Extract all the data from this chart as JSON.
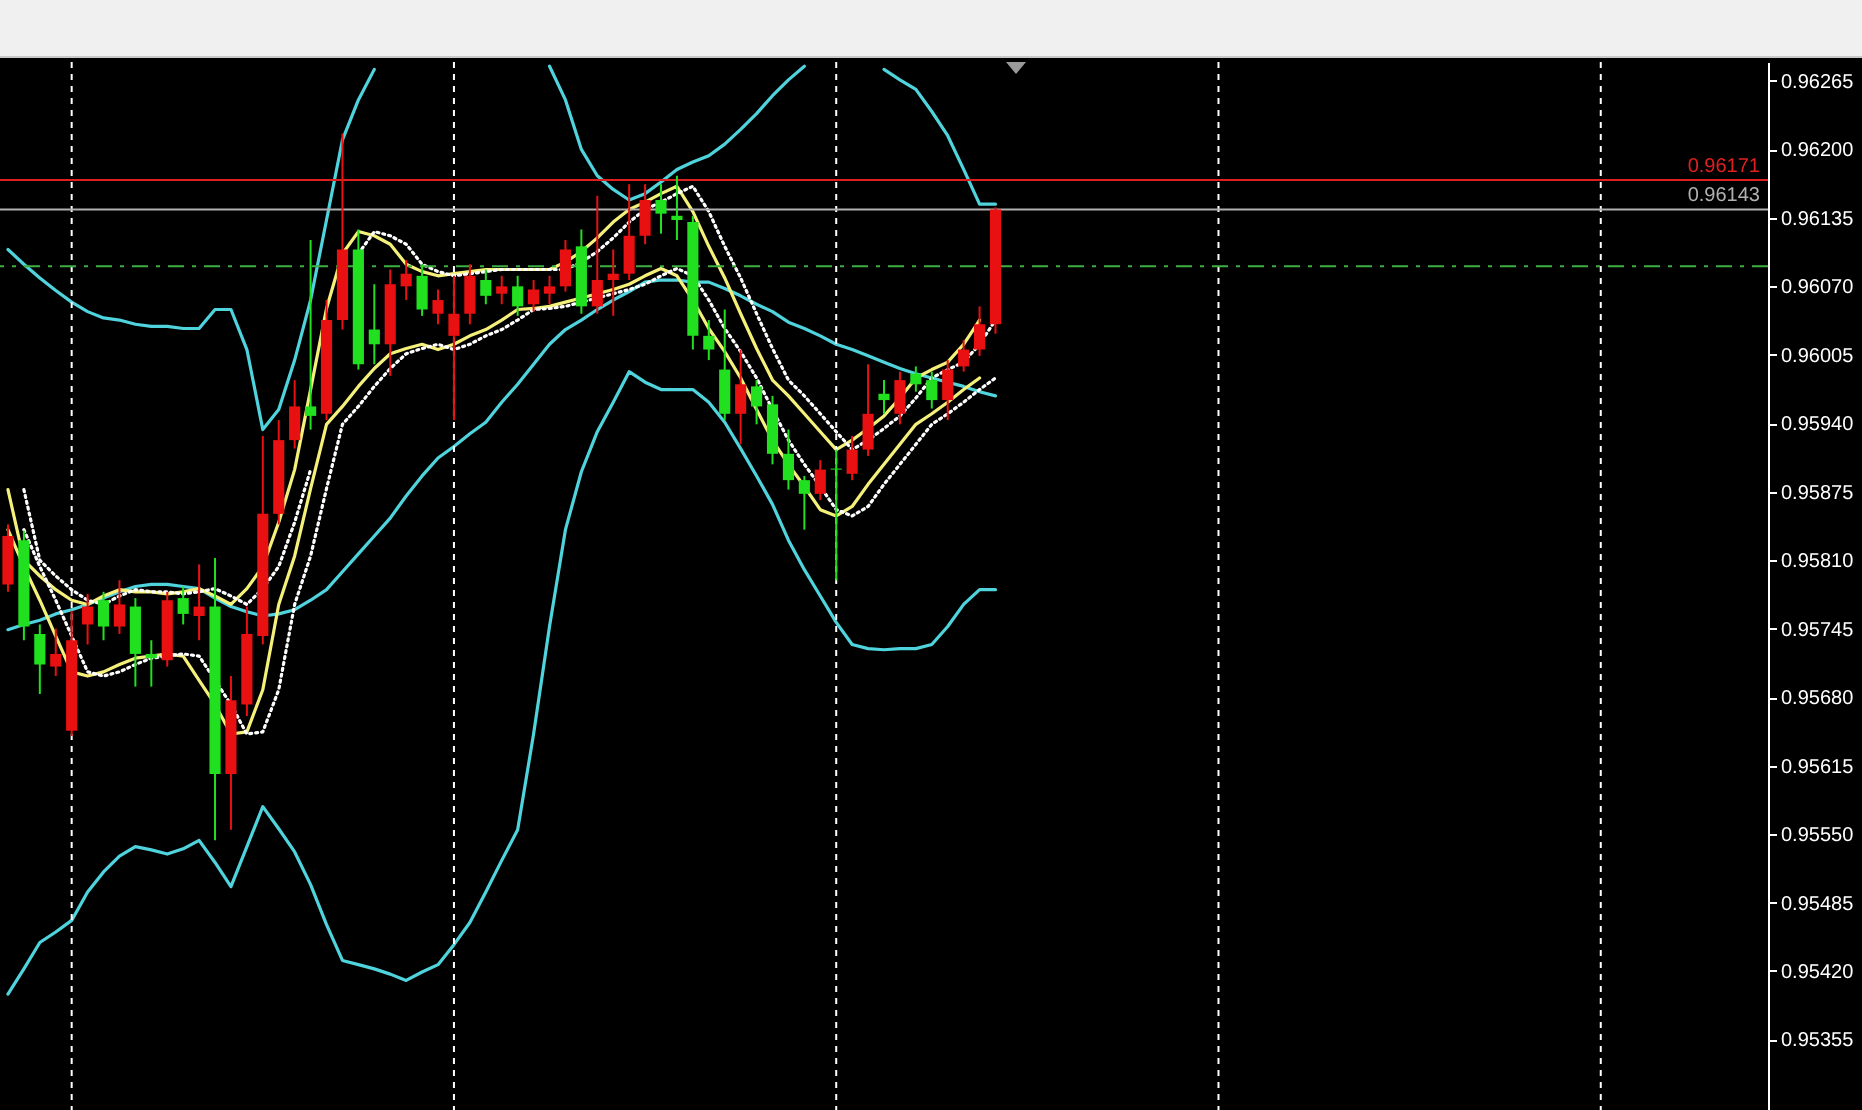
{
  "chart_data": {
    "type": "candlestick",
    "categories": [
      null,
      null,
      null,
      null,
      null,
      null,
      null,
      null,
      null,
      null,
      null,
      null,
      null,
      null,
      null,
      null,
      null,
      null,
      null,
      null,
      null,
      null,
      null,
      null,
      null,
      null,
      null,
      null,
      null,
      null,
      null,
      null,
      null,
      null,
      null,
      null,
      null,
      null,
      null,
      null,
      null,
      null,
      null,
      null,
      null,
      null,
      null,
      null,
      null,
      null,
      null,
      null,
      null,
      null,
      null,
      null,
      null,
      null,
      null,
      null,
      null,
      null,
      null,
      null,
      null,
      null,
      null,
      null,
      null,
      null,
      null,
      null,
      null,
      null,
      null,
      null,
      null,
      null,
      null,
      null,
      null,
      null,
      null,
      null,
      null,
      null,
      null,
      null,
      null,
      null,
      null,
      null,
      null,
      null,
      null,
      null,
      null,
      null,
      null,
      null,
      null,
      null,
      null,
      null,
      null,
      null,
      null,
      null,
      null,
      null,
      null
    ],
    "ohlc": [
      [
        0.95787,
        0.95844,
        0.9578,
        0.95833
      ],
      [
        0.95829,
        0.95838,
        0.95734,
        0.95747
      ],
      [
        0.9574,
        0.95749,
        0.95683,
        0.95711
      ],
      [
        0.95709,
        0.95745,
        0.957,
        0.95721
      ],
      [
        0.95648,
        0.95762,
        0.95643,
        0.95734
      ],
      [
        0.95749,
        0.95778,
        0.9573,
        0.95766
      ],
      [
        0.95772,
        0.9578,
        0.95734,
        0.95747
      ],
      [
        0.95747,
        0.95791,
        0.9574,
        0.95768
      ],
      [
        0.95766,
        0.95774,
        0.9569,
        0.95721
      ],
      [
        0.95721,
        0.95734,
        0.9569,
        0.95717
      ],
      [
        0.95715,
        0.9578,
        0.95709,
        0.95772
      ],
      [
        0.95774,
        0.95785,
        0.95749,
        0.95759
      ],
      [
        0.95757,
        0.95806,
        0.95734,
        0.95766
      ],
      [
        0.95766,
        0.95812,
        0.95544,
        0.95607
      ],
      [
        0.95607,
        0.957,
        0.95554,
        0.95677
      ],
      [
        0.95673,
        0.95766,
        0.95662,
        0.9574
      ],
      [
        0.95738,
        0.95928,
        0.9573,
        0.95854
      ],
      [
        0.95854,
        0.95943,
        0.95844,
        0.95924
      ],
      [
        0.95924,
        0.95981,
        0.95916,
        0.95956
      ],
      [
        0.95956,
        0.96114,
        0.95934,
        0.95947
      ],
      [
        0.95949,
        0.96057,
        0.95943,
        0.96038
      ],
      [
        0.96038,
        0.96215,
        0.96029,
        0.96105
      ],
      [
        0.96105,
        0.96124,
        0.95991,
        0.95996
      ],
      [
        0.96029,
        0.96072,
        0.95996,
        0.96015
      ],
      [
        0.96015,
        0.96086,
        0.95985,
        0.96072
      ],
      [
        0.9607,
        0.96095,
        0.96057,
        0.96082
      ],
      [
        0.9608,
        0.96091,
        0.96042,
        0.96048
      ],
      [
        0.96044,
        0.96067,
        0.96034,
        0.96057
      ],
      [
        0.96023,
        0.9608,
        0.95943,
        0.96044
      ],
      [
        0.96044,
        0.96091,
        0.96034,
        0.9608
      ],
      [
        0.96076,
        0.96086,
        0.96053,
        0.96061
      ],
      [
        0.96063,
        0.9608,
        0.96053,
        0.9607
      ],
      [
        0.9607,
        0.9608,
        0.96042,
        0.96051
      ],
      [
        0.96053,
        0.96076,
        0.96046,
        0.96067
      ],
      [
        0.96063,
        0.9608,
        0.96053,
        0.9607
      ],
      [
        0.9607,
        0.96114,
        0.96065,
        0.96105
      ],
      [
        0.96108,
        0.96124,
        0.96044,
        0.96051
      ],
      [
        0.96051,
        0.96156,
        0.96044,
        0.96076
      ],
      [
        0.96076,
        0.96105,
        0.96042,
        0.96082
      ],
      [
        0.96082,
        0.96167,
        0.96076,
        0.96118
      ],
      [
        0.96118,
        0.96167,
        0.9611,
        0.96152
      ],
      [
        0.96152,
        0.96167,
        0.9612,
        0.96139
      ],
      [
        0.96137,
        0.96175,
        0.96114,
        0.96133
      ],
      [
        0.96131,
        0.96137,
        0.9601,
        0.96023
      ],
      [
        0.96023,
        0.96038,
        0.96,
        0.9601
      ],
      [
        0.95991,
        0.96048,
        0.95943,
        0.95949
      ],
      [
        0.95949,
        0.9601,
        0.9592,
        0.95977
      ],
      [
        0.95975,
        0.95981,
        0.95939,
        0.95956
      ],
      [
        0.95958,
        0.95966,
        0.95901,
        0.95911
      ],
      [
        0.95911,
        0.95934,
        0.95877,
        0.95886
      ],
      [
        0.95886,
        0.9589,
        0.95839,
        0.95873
      ],
      [
        0.95873,
        0.95905,
        0.95867,
        0.95896
      ],
      [
        0.95897,
        0.95915,
        0.95791,
        0.95896
      ],
      [
        0.95892,
        0.95928,
        0.95886,
        0.95915
      ],
      [
        0.95915,
        0.95996,
        0.95909,
        0.95949
      ],
      [
        0.95968,
        0.95981,
        0.95949,
        0.95962
      ],
      [
        0.95949,
        0.95989,
        0.95939,
        0.95981
      ],
      [
        0.95987,
        0.95994,
        0.9597,
        0.95977
      ],
      [
        0.95981,
        0.95989,
        0.95954,
        0.95962
      ],
      [
        0.95962,
        0.96,
        0.95943,
        0.95991
      ],
      [
        0.95994,
        0.96019,
        0.95989,
        0.9601
      ],
      [
        0.9601,
        0.96051,
        0.96004,
        0.96034
      ],
      [
        0.96034,
        0.96145,
        0.96025,
        0.96143
      ],
      null,
      null,
      null,
      null,
      null,
      null,
      null,
      null,
      null,
      null,
      null,
      null,
      null,
      null,
      null,
      null,
      null,
      null,
      null,
      null,
      null,
      null,
      null,
      null,
      null,
      null,
      null,
      null,
      null,
      null,
      null,
      null,
      null,
      null,
      null,
      null,
      null,
      null,
      null,
      null,
      null,
      null,
      null,
      null,
      null,
      null,
      null,
      null
    ],
    "colors": [
      "#e81010",
      "#20e020",
      "#20e020",
      "#e81010",
      "#e81010",
      "#e81010",
      "#20e020",
      "#e81010",
      "#20e020",
      "#20e020",
      "#e81010",
      "#20e020",
      "#e81010",
      "#20e020",
      "#e81010",
      "#e81010",
      "#e81010",
      "#e81010",
      "#e81010",
      "#20e020",
      "#e81010",
      "#e81010",
      "#20e020",
      "#20e020",
      "#e81010",
      "#e81010",
      "#20e020",
      "#e81010",
      "#e81010",
      "#e81010",
      "#20e020",
      "#e81010",
      "#20e020",
      "#e81010",
      "#e81010",
      "#e81010",
      "#20e020",
      "#e81010",
      "#e81010",
      "#e81010",
      "#e81010",
      "#20e020",
      "#20e020",
      "#20e020",
      "#20e020",
      "#20e020",
      "#e81010",
      "#20e020",
      "#20e020",
      "#20e020",
      "#20e020",
      "#e81010",
      "#20e020",
      "#e81010",
      "#e81010",
      "#20e020",
      "#e81010",
      "#20e020",
      "#20e020",
      "#e81010",
      "#e81010",
      "#e81010",
      "#e81010",
      null,
      null,
      null,
      null,
      null,
      null,
      null,
      null,
      null,
      null,
      null,
      null,
      null,
      null,
      null,
      null,
      null,
      null,
      null,
      null,
      null,
      null,
      null,
      null,
      null,
      null,
      null,
      null,
      null,
      null,
      null,
      null,
      null,
      null,
      null,
      null,
      null,
      null,
      null,
      null,
      null,
      null,
      null,
      null,
      null,
      null,
      null,
      null
    ],
    "series": [
      {
        "type": "line",
        "color": "#4fd3dc",
        "values": [
          0.96105,
          0.96091,
          0.96078,
          0.96066,
          0.96055,
          0.96046,
          0.9604,
          0.96038,
          0.96034,
          0.96032,
          0.96032,
          0.9603,
          0.9603,
          0.96048,
          0.96048,
          0.9601,
          0.95934,
          0.95953,
          0.96,
          0.96057,
          0.96133,
          0.96209,
          0.96247,
          0.96276,
          null,
          null,
          null,
          null,
          null,
          null,
          null,
          null,
          null,
          null,
          0.96279,
          0.96247,
          0.962,
          0.96175,
          0.96162,
          0.96152,
          0.96158,
          0.96169,
          0.96181,
          0.96188,
          0.96194,
          0.96205,
          0.96219,
          0.96234,
          0.96251,
          0.96266,
          0.96279,
          null,
          null,
          null,
          null,
          0.96276,
          0.96266,
          0.96257,
          0.96236,
          0.96213,
          0.96181,
          0.96148,
          0.96148,
          null,
          null,
          null,
          null,
          null,
          null,
          null,
          null,
          null,
          null,
          null,
          null,
          null,
          null,
          null,
          null,
          null,
          null,
          null,
          null,
          null,
          null,
          null,
          null,
          null,
          null,
          null,
          null,
          null,
          null,
          null,
          null,
          null,
          null,
          null,
          null,
          null,
          null,
          null,
          null,
          null,
          null,
          null,
          null,
          null,
          null,
          null,
          null
        ]
      },
      {
        "type": "line",
        "color": "#4fd3dc",
        "values": [
          0.95744,
          0.95749,
          0.95753,
          0.95759,
          0.95763,
          0.95768,
          0.95774,
          0.9578,
          0.95785,
          0.95787,
          0.95787,
          0.95785,
          0.95783,
          0.95774,
          0.95766,
          0.95761,
          0.95757,
          0.95759,
          0.95763,
          0.95772,
          0.95782,
          0.95799,
          0.95816,
          0.95833,
          0.9585,
          0.95871,
          0.9589,
          0.95907,
          0.95918,
          0.9593,
          0.95941,
          0.9596,
          0.95977,
          0.95996,
          0.96015,
          0.96029,
          0.96038,
          0.96048,
          0.96057,
          0.96065,
          0.96074,
          0.96076,
          0.96076,
          0.96074,
          0.96074,
          0.96068,
          0.96061,
          0.96053,
          0.96046,
          0.96036,
          0.9603,
          0.96023,
          0.96015,
          0.9601,
          0.96004,
          0.95998,
          0.95992,
          0.95987,
          0.95983,
          0.95979,
          0.95975,
          0.9597,
          0.95966,
          null,
          null,
          null,
          null,
          null,
          null,
          null,
          null,
          null,
          null,
          null,
          null,
          null,
          null,
          null,
          null,
          null,
          null,
          null,
          null,
          null,
          null,
          null,
          null,
          null,
          null,
          null,
          null,
          null,
          null,
          null,
          null,
          null,
          null,
          null,
          null,
          null,
          null,
          null,
          null,
          null,
          null,
          null,
          null,
          null,
          null,
          null,
          null
        ]
      },
      {
        "type": "line",
        "color": "#4fd3dc",
        "values": [
          0.95398,
          0.95422,
          0.95447,
          0.95457,
          0.95468,
          0.95495,
          0.95514,
          0.95529,
          0.95538,
          0.95535,
          0.95531,
          0.95536,
          0.95544,
          0.95523,
          0.955,
          0.95538,
          0.95576,
          0.95555,
          0.95533,
          0.95502,
          0.95464,
          0.9543,
          0.95426,
          0.95422,
          0.95417,
          0.95411,
          0.95419,
          0.95426,
          0.95445,
          0.95466,
          0.95495,
          0.95525,
          0.95554,
          0.95645,
          0.95747,
          0.95839,
          0.95894,
          0.95932,
          0.9596,
          0.95989,
          0.95979,
          0.95972,
          0.95972,
          0.95972,
          0.9596,
          0.95941,
          0.95916,
          0.9589,
          0.95863,
          0.95829,
          0.95801,
          0.95776,
          0.95751,
          0.9573,
          0.95726,
          0.95725,
          0.95726,
          0.95726,
          0.9573,
          0.95747,
          0.95768,
          0.95782,
          0.95782,
          null,
          null,
          null,
          null,
          null,
          null,
          null,
          null,
          null,
          null,
          null,
          null,
          null,
          null,
          null,
          null,
          null,
          null,
          null,
          null,
          null,
          null,
          null,
          null,
          null,
          null,
          null,
          null,
          null,
          null,
          null,
          null,
          null,
          null,
          null,
          null,
          null,
          null,
          null,
          null,
          null,
          null,
          null,
          null,
          null,
          null,
          null,
          null
        ]
      },
      {
        "type": "line",
        "color": "#f4f07a",
        "values": [
          0.95877,
          0.9581,
          0.95795,
          0.95782,
          0.95772,
          0.95768,
          0.95776,
          0.95782,
          0.9578,
          0.9578,
          0.95778,
          0.9578,
          0.95783,
          0.95776,
          0.95768,
          0.95783,
          0.95804,
          0.95846,
          0.95896,
          0.95972,
          0.96049,
          0.96101,
          0.96122,
          0.96118,
          0.9611,
          0.96091,
          0.96084,
          0.9608,
          0.96082,
          0.96084,
          0.96086,
          0.96086,
          0.96086,
          0.96086,
          0.96086,
          0.96093,
          0.96103,
          0.96116,
          0.96131,
          0.96143,
          0.9615,
          0.96158,
          0.96165,
          0.96141,
          0.96108,
          0.96078,
          0.96044,
          0.96011,
          0.95981,
          0.95966,
          0.95949,
          0.95932,
          0.95915,
          0.95924,
          0.95935,
          0.95947,
          0.95964,
          0.95983,
          0.95991,
          0.95998,
          0.96015,
          0.96038,
          null,
          null,
          null,
          null,
          null,
          null,
          null,
          null,
          null,
          null,
          null,
          null,
          null,
          null,
          null,
          null,
          null,
          null,
          null,
          null,
          null,
          null,
          null,
          null,
          null,
          null,
          null,
          null,
          null,
          null,
          null,
          null,
          null,
          null,
          null,
          null,
          null,
          null,
          null,
          null,
          null,
          null,
          null,
          null,
          null,
          null,
          null,
          null,
          null
        ]
      },
      {
        "type": "line",
        "color": "#f4f07a",
        "values": [
          0.95839,
          0.95804,
          0.95772,
          0.95738,
          0.95704,
          0.957,
          0.95704,
          0.95711,
          0.95717,
          0.95719,
          0.95721,
          0.95719,
          0.95696,
          0.95673,
          0.95645,
          0.95647,
          0.95687,
          0.95768,
          0.95814,
          0.95878,
          0.95939,
          0.95956,
          0.95975,
          0.95992,
          0.96006,
          0.96011,
          0.96015,
          0.9601,
          0.96015,
          0.96023,
          0.96029,
          0.96038,
          0.96048,
          0.96049,
          0.96051,
          0.96055,
          0.96059,
          0.96063,
          0.96067,
          0.96072,
          0.9608,
          0.96087,
          0.9608,
          0.96057,
          0.9603,
          0.96008,
          0.95983,
          0.95953,
          0.95924,
          0.95901,
          0.9588,
          0.95858,
          0.95852,
          0.95861,
          0.95882,
          0.95901,
          0.9592,
          0.95939,
          0.95949,
          0.9596,
          0.95972,
          0.95983,
          null,
          null,
          null,
          null,
          null,
          null,
          null,
          null,
          null,
          null,
          null,
          null,
          null,
          null,
          null,
          null,
          null,
          null,
          null,
          null,
          null,
          null,
          null,
          null,
          null,
          null,
          null,
          null,
          null,
          null,
          null,
          null,
          null,
          null,
          null,
          null,
          null,
          null,
          null,
          null,
          null,
          null,
          null,
          null,
          null,
          null,
          null,
          null,
          null
        ]
      },
      {
        "type": "line",
        "color": "#ffffff",
        "line_style": "dotted",
        "values": [
          null,
          0.95877,
          0.9581,
          0.95795,
          0.95782,
          0.95772,
          0.95768,
          0.95776,
          0.95782,
          0.9578,
          0.9578,
          0.95778,
          0.9578,
          0.95783,
          0.95776,
          0.95768,
          0.95783,
          0.95804,
          0.95846,
          0.95896,
          null,
          null,
          0.96101,
          0.96122,
          0.96118,
          0.9611,
          0.96091,
          0.96084,
          0.9608,
          0.96082,
          0.96084,
          0.96086,
          0.96086,
          0.96086,
          0.96086,
          0.96086,
          0.96093,
          0.96103,
          0.96116,
          0.96131,
          0.96143,
          0.9615,
          0.96158,
          0.96165,
          0.96141,
          0.96108,
          0.96078,
          0.96044,
          0.96011,
          0.95981,
          0.95966,
          0.95949,
          0.95932,
          0.95915,
          0.95924,
          0.95935,
          0.95947,
          0.95964,
          0.95983,
          0.95991,
          0.95998,
          0.96015,
          0.96038,
          null,
          null,
          null,
          null,
          null,
          null,
          null,
          null,
          null,
          null,
          null,
          null,
          null,
          null,
          null,
          null,
          null,
          null,
          null,
          null,
          null,
          null,
          null,
          null,
          null,
          null,
          null,
          null,
          null,
          null,
          null,
          null,
          null,
          null,
          null,
          null,
          null,
          null,
          null,
          null,
          null,
          null,
          null,
          null,
          null,
          null,
          null,
          null
        ]
      },
      {
        "type": "line",
        "color": "#ffffff",
        "line_style": "dotted",
        "values": [
          null,
          0.95839,
          0.95804,
          0.95772,
          0.95738,
          0.95704,
          0.957,
          0.95704,
          0.95711,
          0.95717,
          0.95719,
          0.95721,
          0.95719,
          0.95696,
          0.95673,
          0.95645,
          0.95647,
          0.95687,
          0.95768,
          0.95814,
          0.95878,
          0.95939,
          0.95956,
          0.95975,
          0.95992,
          0.96006,
          0.96011,
          0.96015,
          0.9601,
          0.96015,
          0.96023,
          0.96029,
          0.96038,
          0.96048,
          0.96049,
          0.96051,
          0.96055,
          0.96059,
          0.96063,
          0.96067,
          0.96072,
          0.9608,
          0.96087,
          0.9608,
          0.96057,
          0.9603,
          0.96008,
          0.95983,
          0.95953,
          0.95924,
          0.95901,
          0.9588,
          0.95858,
          0.95852,
          0.95861,
          0.95882,
          0.95901,
          0.9592,
          0.95939,
          0.95949,
          0.9596,
          0.95972,
          0.95983,
          null,
          null,
          null,
          null,
          null,
          null,
          null,
          null,
          null,
          null,
          null,
          null,
          null,
          null,
          null,
          null,
          null,
          null,
          null,
          null,
          null,
          null,
          null,
          null,
          null,
          null,
          null,
          null,
          null,
          null,
          null,
          null,
          null,
          null,
          null,
          null,
          null,
          null,
          null,
          null,
          null,
          null,
          null,
          null,
          null,
          null,
          null,
          null
        ]
      }
    ],
    "ylim": [
      0.95288,
      0.96283
    ],
    "yticks": [
      0.96265,
      {
        "value": 0.962,
        "label": "0.96200"
      },
      0.96135,
      {
        "value": 0.9607,
        "label": "0.96070"
      },
      0.96005,
      {
        "value": 0.9594,
        "label": "0.95940"
      },
      0.95875,
      {
        "value": 0.9581,
        "label": "0.95810"
      },
      0.95745,
      {
        "value": 0.9568,
        "label": "0.95680"
      },
      0.95615,
      {
        "value": 0.9555,
        "label": "0.95550"
      },
      0.95485,
      {
        "value": 0.9542,
        "label": "0.95420"
      },
      0.95355
    ],
    "tick_labels": "y",
    "grid": "x",
    "ref_lines": [
      {
        "axis": "y",
        "value": 0.96171,
        "label": "0.96171",
        "color": "#e02020"
      },
      {
        "axis": "y",
        "value": 0.96143,
        "label": "0.96143",
        "color": "#b0b0b0"
      },
      {
        "axis": "y",
        "value": 0.96089,
        "color": "#3cb043",
        "line_style": "dashed"
      }
    ]
  }
}
